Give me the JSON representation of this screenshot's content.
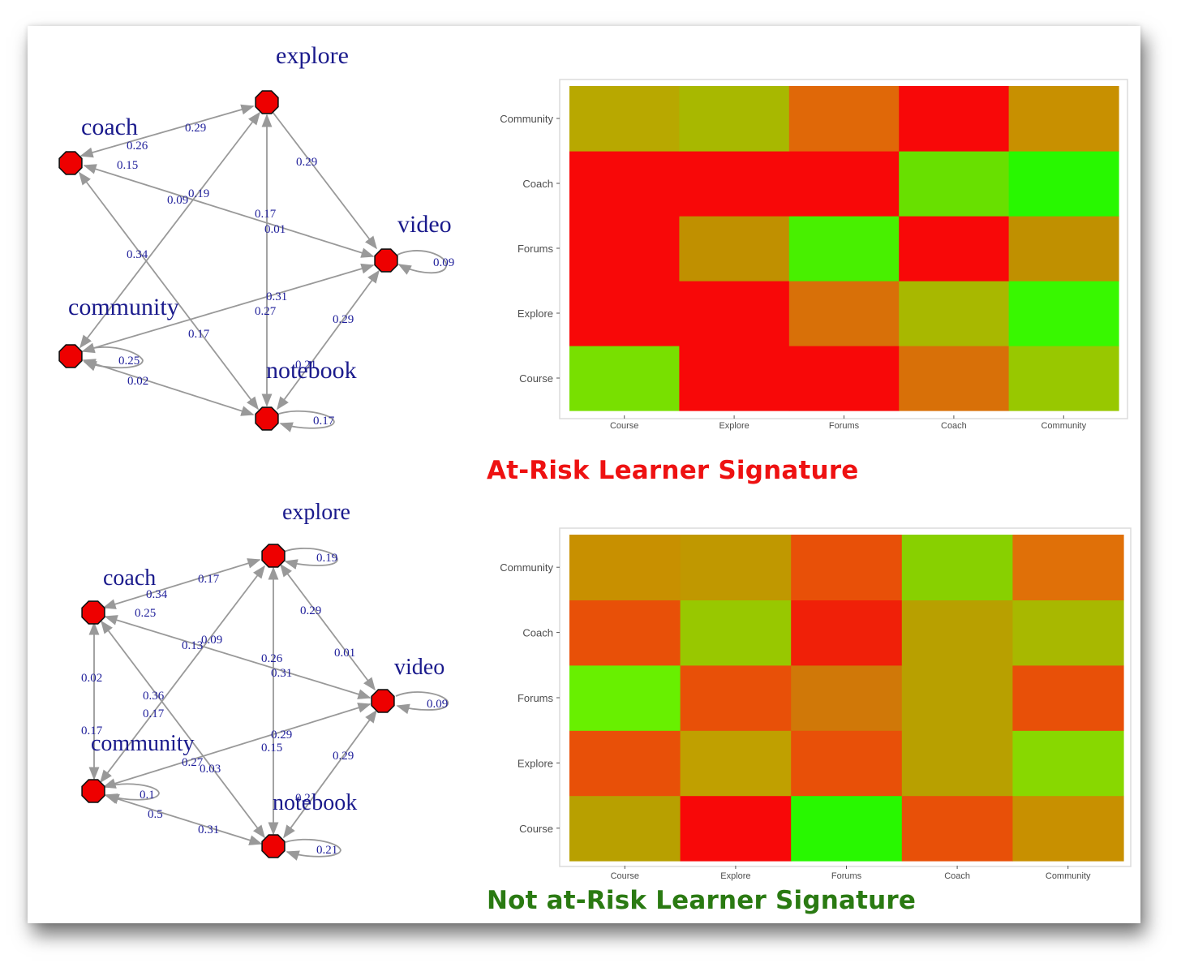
{
  "colors": {
    "at_risk_title": "#ee1111",
    "not_at_risk_title": "#2a7a12",
    "node_fill": "#ee0000",
    "edge": "#999999"
  },
  "networks": [
    {
      "name": "at-risk",
      "nodes": [
        {
          "id": "explore",
          "label": "explore"
        },
        {
          "id": "coach",
          "label": "coach"
        },
        {
          "id": "video",
          "label": "video"
        },
        {
          "id": "community",
          "label": "community"
        },
        {
          "id": "notebook",
          "label": "notebook"
        }
      ],
      "self_loops": [
        {
          "node": "video",
          "label": "0.09"
        },
        {
          "node": "community",
          "label": "0.25"
        },
        {
          "node": "notebook",
          "label": "0.17"
        }
      ],
      "edge_labels": [
        "0.29",
        "0.26",
        "0.15",
        "0.29",
        "0.09",
        "0.19",
        "0.17",
        "0.01",
        "0.34",
        "0.31",
        "0.27",
        "0.17",
        "0.29",
        "0.21",
        "0.02"
      ]
    },
    {
      "name": "not-at-risk",
      "nodes": [
        {
          "id": "explore",
          "label": "explore"
        },
        {
          "id": "coach",
          "label": "coach"
        },
        {
          "id": "video",
          "label": "video"
        },
        {
          "id": "community",
          "label": "community"
        },
        {
          "id": "notebook",
          "label": "notebook"
        }
      ],
      "self_loops": [
        {
          "node": "explore",
          "label": "0.19"
        },
        {
          "node": "video",
          "label": "0.09"
        },
        {
          "node": "community",
          "label": "0.1"
        },
        {
          "node": "notebook",
          "label": "0.21"
        }
      ],
      "edge_labels": [
        "0.17",
        "0.34",
        "0.25",
        "0.29",
        "0.01",
        "0.09",
        "0.13",
        "0.26",
        "0.31",
        "0.02",
        "0.17",
        "0.36",
        "0.17",
        "0.29",
        "0.15",
        "0.27",
        "0.03",
        "0.29",
        "0.2",
        "0.5",
        "0.31"
      ]
    }
  ],
  "chart_data": [
    {
      "type": "heatmap",
      "x": [
        "Course",
        "Explore",
        "Forums",
        "Coach",
        "Community"
      ],
      "y": [
        "Course",
        "Explore",
        "Forums",
        "Coach",
        "Community"
      ],
      "cells": [
        [
          "#78e000",
          "#f80808",
          "#f80808",
          "#d87008",
          "#98c800"
        ],
        [
          "#f80808",
          "#f80808",
          "#d87008",
          "#a8b800",
          "#38f800"
        ],
        [
          "#f80808",
          "#c09000",
          "#48f000",
          "#f80808",
          "#c09000"
        ],
        [
          "#f80808",
          "#f80808",
          "#f80808",
          "#68e000",
          "#28f800"
        ],
        [
          "#b8a800",
          "#a8b800",
          "#e06808",
          "#f80808",
          "#c89000"
        ]
      ]
    },
    {
      "type": "heatmap",
      "x": [
        "Course",
        "Explore",
        "Forums",
        "Coach",
        "Community"
      ],
      "y": [
        "Course",
        "Explore",
        "Forums",
        "Coach",
        "Community"
      ],
      "cells": [
        [
          "#b8a000",
          "#f80808",
          "#28f800",
          "#e85008",
          "#c89000"
        ],
        [
          "#e85008",
          "#c0a000",
          "#e85008",
          "#b8a000",
          "#88d800"
        ],
        [
          "#68f000",
          "#e85008",
          "#d07808",
          "#b8a000",
          "#e85008"
        ],
        [
          "#e85008",
          "#98c800",
          "#f02008",
          "#b8a000",
          "#a8b800"
        ],
        [
          "#c89000",
          "#c09800",
          "#e85008",
          "#88d000",
          "#e07008"
        ]
      ]
    }
  ],
  "titles": {
    "at_risk": "At-Risk Learner Signature",
    "not_at_risk": "Not at-Risk Learner Signature"
  }
}
